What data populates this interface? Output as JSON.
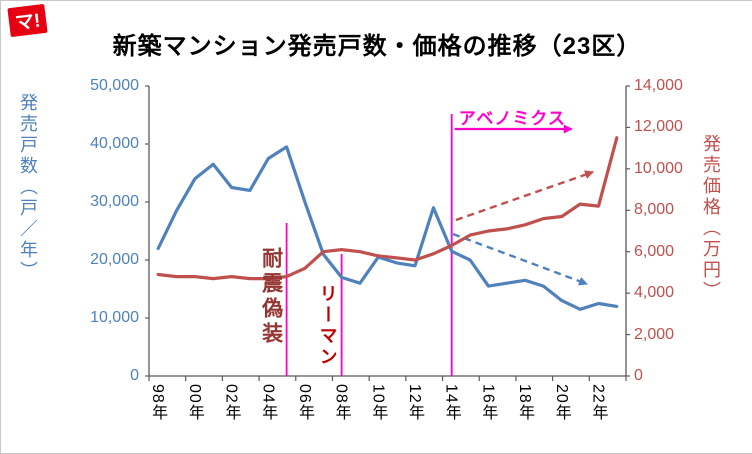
{
  "logo": {
    "text": "マ!",
    "background": "#E60012"
  },
  "chart_data": {
    "type": "line",
    "title": "新築マンション発売戸数・価格の推移（23区）",
    "grid": false,
    "legend": "none",
    "x_years": [
      1998,
      1999,
      2000,
      2001,
      2002,
      2003,
      2004,
      2005,
      2006,
      2007,
      2008,
      2009,
      2010,
      2011,
      2012,
      2013,
      2014,
      2015,
      2016,
      2017,
      2018,
      2019,
      2020,
      2021,
      2022,
      2023
    ],
    "x_tick_labels": [
      "98年",
      "00年",
      "02年",
      "04年",
      "06年",
      "08年",
      "10年",
      "12年",
      "14年",
      "16年",
      "18年",
      "20年",
      "22年"
    ],
    "x_axis": {
      "tick_color": "#000000"
    },
    "series": [
      {
        "name": "発売戸数",
        "axis": "left",
        "color": "#4F81BD",
        "values": [
          22000,
          28500,
          34000,
          36500,
          32500,
          32000,
          37500,
          39500,
          30000,
          21000,
          17000,
          16000,
          20500,
          19500,
          19000,
          29000,
          21500,
          20000,
          15500,
          16000,
          16500,
          15500,
          13000,
          11500,
          12500,
          12000
        ]
      },
      {
        "name": "発売価格",
        "axis": "right",
        "color": "#C0504D",
        "values": [
          4900,
          4800,
          4800,
          4700,
          4800,
          4700,
          4700,
          4800,
          5200,
          6000,
          6100,
          6000,
          5800,
          5700,
          5600,
          5900,
          6300,
          6800,
          7000,
          7100,
          7300,
          7600,
          7700,
          8300,
          8200,
          11500
        ]
      }
    ],
    "left_axis": {
      "title": "発売戸数（戸／年）",
      "color": "#4F81BD",
      "min": 0,
      "max": 50000,
      "interval": 10000,
      "tick_labels": [
        "0",
        "10,000",
        "20,000",
        "30,000",
        "40,000",
        "50,000"
      ]
    },
    "right_axis": {
      "title": "発売価格（万円）",
      "color": "#C0504D",
      "min": 0,
      "max": 14000,
      "interval": 2000,
      "tick_labels": [
        "0",
        "2,000",
        "4,000",
        "6,000",
        "8,000",
        "10,000",
        "12,000",
        "14,000"
      ]
    },
    "annotations": [
      {
        "id": "taishin",
        "label": "耐震偽装",
        "year": 2005,
        "orientation": "vertical",
        "text_color": "#943634",
        "line_color": "#FF00CC"
      },
      {
        "id": "lehman",
        "label": "リーマン",
        "year": 2008,
        "orientation": "vertical",
        "text_color": "#C00000",
        "line_color": "#FF00CC"
      },
      {
        "id": "abenomics",
        "label": "アベノミクス",
        "year": 2014,
        "orientation": "horizontal",
        "text_color": "#FF00CC",
        "line_color": "#FF00CC",
        "arrow": "right"
      }
    ],
    "trend_arrows": [
      {
        "id": "price-trend",
        "series": "発売価格",
        "direction": "up",
        "style": "dashed",
        "color": "#C0504D"
      },
      {
        "id": "units-trend",
        "series": "発売戸数",
        "direction": "down",
        "style": "dashed",
        "color": "#4F81BD"
      }
    ]
  }
}
